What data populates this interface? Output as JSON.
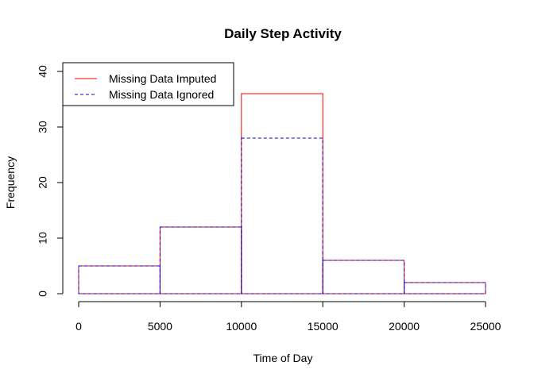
{
  "chart_data": {
    "type": "bar",
    "title": "Daily Step Activity",
    "xlabel": "Time of Day",
    "ylabel": "Frequency",
    "xlim": [
      0,
      25000
    ],
    "ylim": [
      0,
      40
    ],
    "x_ticks": [
      0,
      5000,
      10000,
      15000,
      20000,
      25000
    ],
    "y_ticks": [
      0,
      10,
      20,
      30,
      40
    ],
    "bins": [
      [
        0,
        5000
      ],
      [
        5000,
        10000
      ],
      [
        10000,
        15000
      ],
      [
        15000,
        20000
      ],
      [
        20000,
        25000
      ]
    ],
    "series": [
      {
        "name": "Missing Data Imputed",
        "values": [
          5,
          12,
          36,
          6,
          2
        ],
        "color": "#ff0000",
        "line": "solid"
      },
      {
        "name": "Missing Data Ignored",
        "values": [
          5,
          12,
          28,
          6,
          2
        ],
        "color": "#0000cd",
        "line": "dashed"
      }
    ],
    "legend": {
      "position": "top-left"
    },
    "grid": false
  }
}
